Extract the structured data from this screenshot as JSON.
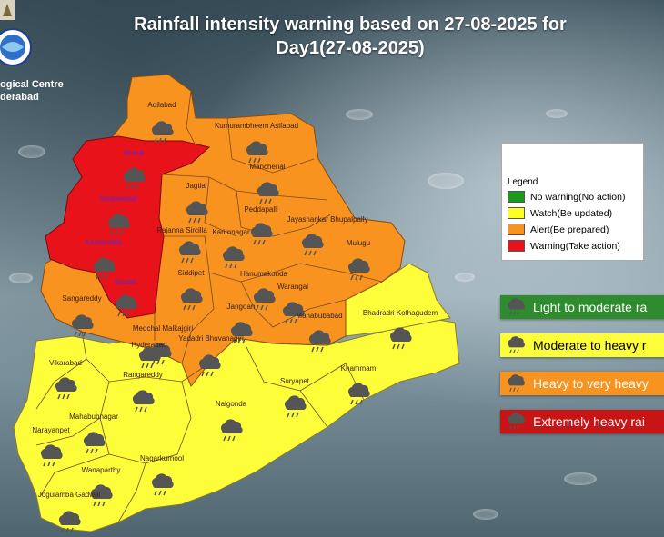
{
  "title": {
    "line1": "Rainfall intensity warning based on 27-08-2025 for",
    "line2": "Day1(27-08-2025)"
  },
  "logo": {
    "caption_line1": "ogical Centre",
    "caption_line2": "derabad"
  },
  "colors": {
    "red": "#e8121a",
    "orange": "#f7931e",
    "yellow": "#fdfd3a",
    "green": "#2e8b2e"
  },
  "districts": [
    {
      "name": "Adilabad",
      "level": "orange"
    },
    {
      "name": "Kumurambheem Asifabad",
      "level": "orange"
    },
    {
      "name": "Nirmal",
      "level": "red"
    },
    {
      "name": "Mancherial",
      "level": "orange"
    },
    {
      "name": "Nizamabad",
      "level": "red"
    },
    {
      "name": "Jagtial",
      "level": "orange"
    },
    {
      "name": "Peddapalli",
      "level": "orange"
    },
    {
      "name": "Jayashankar Bhupalpally",
      "level": "orange"
    },
    {
      "name": "Rajanna Sircilla",
      "level": "orange"
    },
    {
      "name": "Karimnagar",
      "level": "orange"
    },
    {
      "name": "Mulugu",
      "level": "orange"
    },
    {
      "name": "Kamareddy",
      "level": "red"
    },
    {
      "name": "Medak",
      "level": "red"
    },
    {
      "name": "Siddipet",
      "level": "orange"
    },
    {
      "name": "Hanumakonda",
      "level": "orange"
    },
    {
      "name": "Warangal",
      "level": "orange"
    },
    {
      "name": "Sangareddy",
      "level": "orange"
    },
    {
      "name": "Jangoan",
      "level": "orange"
    },
    {
      "name": "Mahabubabad",
      "level": "orange"
    },
    {
      "name": "Bhadradri Kothagudem",
      "level": "yellow"
    },
    {
      "name": "Medchal Malkajgiri",
      "level": "yellow"
    },
    {
      "name": "Hyderabad",
      "level": "yellow"
    },
    {
      "name": "Yadadri Bhuvanagiri",
      "level": "orange"
    },
    {
      "name": "Vikarabad",
      "level": "yellow"
    },
    {
      "name": "Rangareddy",
      "level": "yellow"
    },
    {
      "name": "Suryapet",
      "level": "yellow"
    },
    {
      "name": "Khammam",
      "level": "yellow"
    },
    {
      "name": "Nalgonda",
      "level": "yellow"
    },
    {
      "name": "Narayanpet",
      "level": "yellow"
    },
    {
      "name": "Mahabubnagar",
      "level": "yellow"
    },
    {
      "name": "Wanaparthy",
      "level": "yellow"
    },
    {
      "name": "Nagarkurnool",
      "level": "yellow"
    },
    {
      "name": "Jogulamba Gadwal",
      "level": "yellow"
    }
  ],
  "legend": {
    "title": "Legend",
    "items": [
      {
        "label": "No warning(No action)",
        "color": "#1a9a1a"
      },
      {
        "label": "Watch(Be updated)",
        "color": "#ffff22"
      },
      {
        "label": "Alert(Be prepared)",
        "color": "#f7931e"
      },
      {
        "label": "Warning(Take action)",
        "color": "#e8121a"
      }
    ]
  },
  "intensity_key": [
    {
      "label": "Light to moderate ra",
      "color": "#2e8b2e",
      "text_color": "#ffffff",
      "icon": "light-rain-cloud-icon"
    },
    {
      "label": "Moderate to heavy r",
      "color": "#fdfd3a",
      "text_color": "#000000",
      "icon": "moderate-rain-cloud-icon"
    },
    {
      "label": "Heavy to very heavy",
      "color": "#f7931e",
      "text_color": "#ffffff",
      "icon": "heavy-rain-cloud-icon"
    },
    {
      "label": "Extremely heavy rai",
      "color": "#c81414",
      "text_color": "#ffffff",
      "icon": "extreme-rain-cloud-icon"
    }
  ]
}
